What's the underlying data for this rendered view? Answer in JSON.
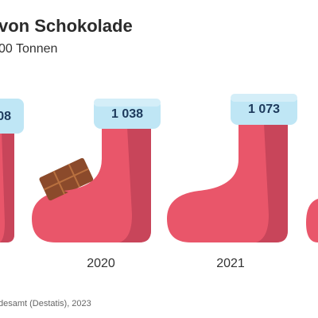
{
  "header": {
    "title": "von Schokolade",
    "subtitle": "00 Tonnen"
  },
  "items": [
    {
      "label": "08"
    },
    {
      "label": "1 038",
      "year": "2020"
    },
    {
      "label": "1 073",
      "year": "2021"
    }
  ],
  "source": "desamt (Destatis), 2023"
}
